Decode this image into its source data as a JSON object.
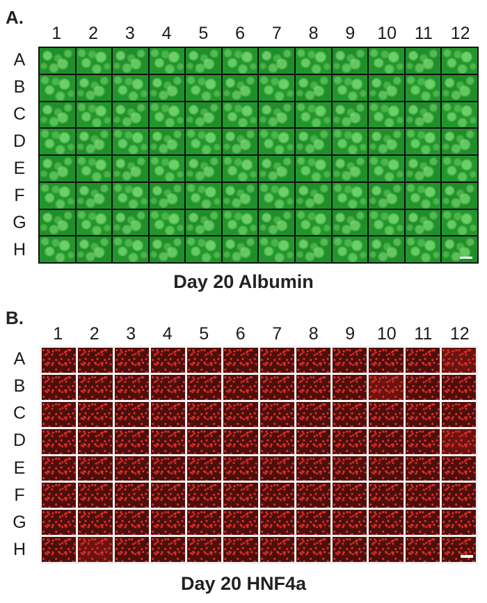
{
  "panels": [
    {
      "letter": "A.",
      "caption": "Day 20 Albumin",
      "stain_color": "#1f8f2a",
      "columns": [
        "1",
        "2",
        "3",
        "4",
        "5",
        "6",
        "7",
        "8",
        "9",
        "10",
        "11",
        "12"
      ],
      "rows": [
        "A",
        "B",
        "C",
        "D",
        "E",
        "F",
        "G",
        "H"
      ]
    },
    {
      "letter": "B.",
      "caption": "Day 20 HNF4a",
      "stain_color": "#4d0f0c",
      "columns": [
        "1",
        "2",
        "3",
        "4",
        "5",
        "6",
        "7",
        "8",
        "9",
        "10",
        "11",
        "12"
      ],
      "rows": [
        "A",
        "B",
        "C",
        "D",
        "E",
        "F",
        "G",
        "H"
      ]
    }
  ]
}
